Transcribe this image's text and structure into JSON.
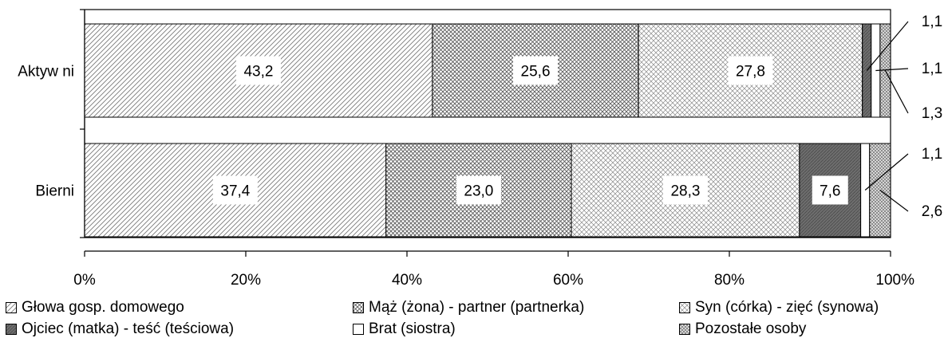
{
  "chart_data": {
    "type": "bar",
    "orientation": "horizontal",
    "stacked": "percent",
    "categories": [
      "Aktyw ni",
      "Bierni"
    ],
    "series": [
      {
        "name": "Głowa gosp. domowego",
        "values": [
          43.2,
          37.4
        ],
        "pattern": "diag-light"
      },
      {
        "name": "Mąż (żona) - partner (partnerka)",
        "values": [
          25.6,
          23.0
        ],
        "pattern": "crosshatch-dense"
      },
      {
        "name": "Syn (córka) - zięć (synowa)",
        "values": [
          27.8,
          28.3
        ],
        "pattern": "crosshatch-light"
      },
      {
        "name": "Ojciec (matka) - teść (teściowa)",
        "values": [
          1.1,
          7.6
        ],
        "pattern": "dark-grey"
      },
      {
        "name": "Brat (siostra)",
        "values": [
          1.1,
          1.1
        ],
        "pattern": "white"
      },
      {
        "name": "Pozostałe osoby",
        "values": [
          1.3,
          2.6
        ],
        "pattern": "checker"
      }
    ],
    "data_labels": [
      [
        "43,2",
        "25,6",
        "27,8",
        "1,1",
        "1,1",
        "1,3"
      ],
      [
        "37,4",
        "23,0",
        "28,3",
        "7,6",
        "1,1",
        "2,6"
      ]
    ],
    "outside_label_series": [
      [
        3,
        4,
        5
      ],
      [
        4,
        5
      ]
    ],
    "x_ticks": [
      "0%",
      "20%",
      "40%",
      "60%",
      "80%",
      "100%"
    ],
    "xlim": [
      0,
      100
    ],
    "grid": false,
    "legend_position": "bottom"
  }
}
